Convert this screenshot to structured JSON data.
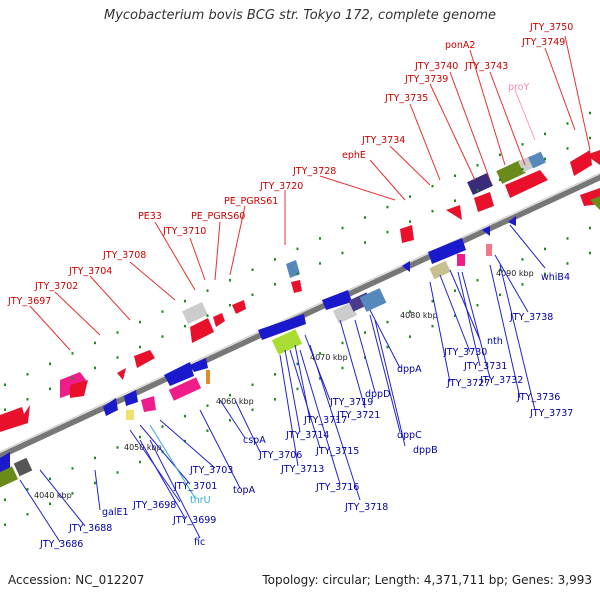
{
  "title": "Mycobacterium bovis BCG str. Tokyo 172, complete genome",
  "footer": {
    "accession": "Accession: NC_012207",
    "topology": "Topology: circular; Length: 4,371,711 bp; Genes: 3,993"
  },
  "ticks": [
    "4040 kbp",
    "4050 kbp",
    "4060 kbp",
    "4070 kbp",
    "4080 kbp",
    "4090 kbp"
  ],
  "top_labels": [
    "JTY_3750",
    "JTY_3749",
    "ponA2",
    "JTY_3740",
    "JTY_3743",
    "JTY_3739",
    "proY",
    "JTY_3735",
    "JTY_3734",
    "ephE",
    "JTY_3728",
    "JTY_3720",
    "PE_PGRS61",
    "PE_PGRS60",
    "PE33",
    "JTY_3710",
    "JTY_3708",
    "JTY_3704",
    "JTY_3702",
    "JTY_3697"
  ],
  "bottom_labels": [
    "whiB4",
    "JTY_3738",
    "nth",
    "JTY_3730",
    "JTY_3731",
    "JTY_3732",
    "JTY_3727",
    "JTY_3736",
    "JTY_3737",
    "dppA",
    "dppD",
    "JTY_3721",
    "dppC",
    "dppB",
    "JTY_3719",
    "JTY_3717",
    "JTY_3714",
    "JTY_3715",
    "JTY_3713",
    "JTY_3716",
    "JTY_3718",
    "cspA",
    "JTY_3706",
    "JTY_3703",
    "JTY_3701",
    "topA",
    "thrU",
    "JTY_3698",
    "JTY_3699",
    "galE1",
    "fic",
    "JTY_3688",
    "JTY_3686"
  ],
  "colors": {
    "forward_label": "#cc0000",
    "reverse_label": "#0000aa",
    "rna_label": "#33aacc",
    "pseudo_label": "#ff88aa",
    "track": "#999999",
    "tick_mark": "#1a8a1a"
  }
}
